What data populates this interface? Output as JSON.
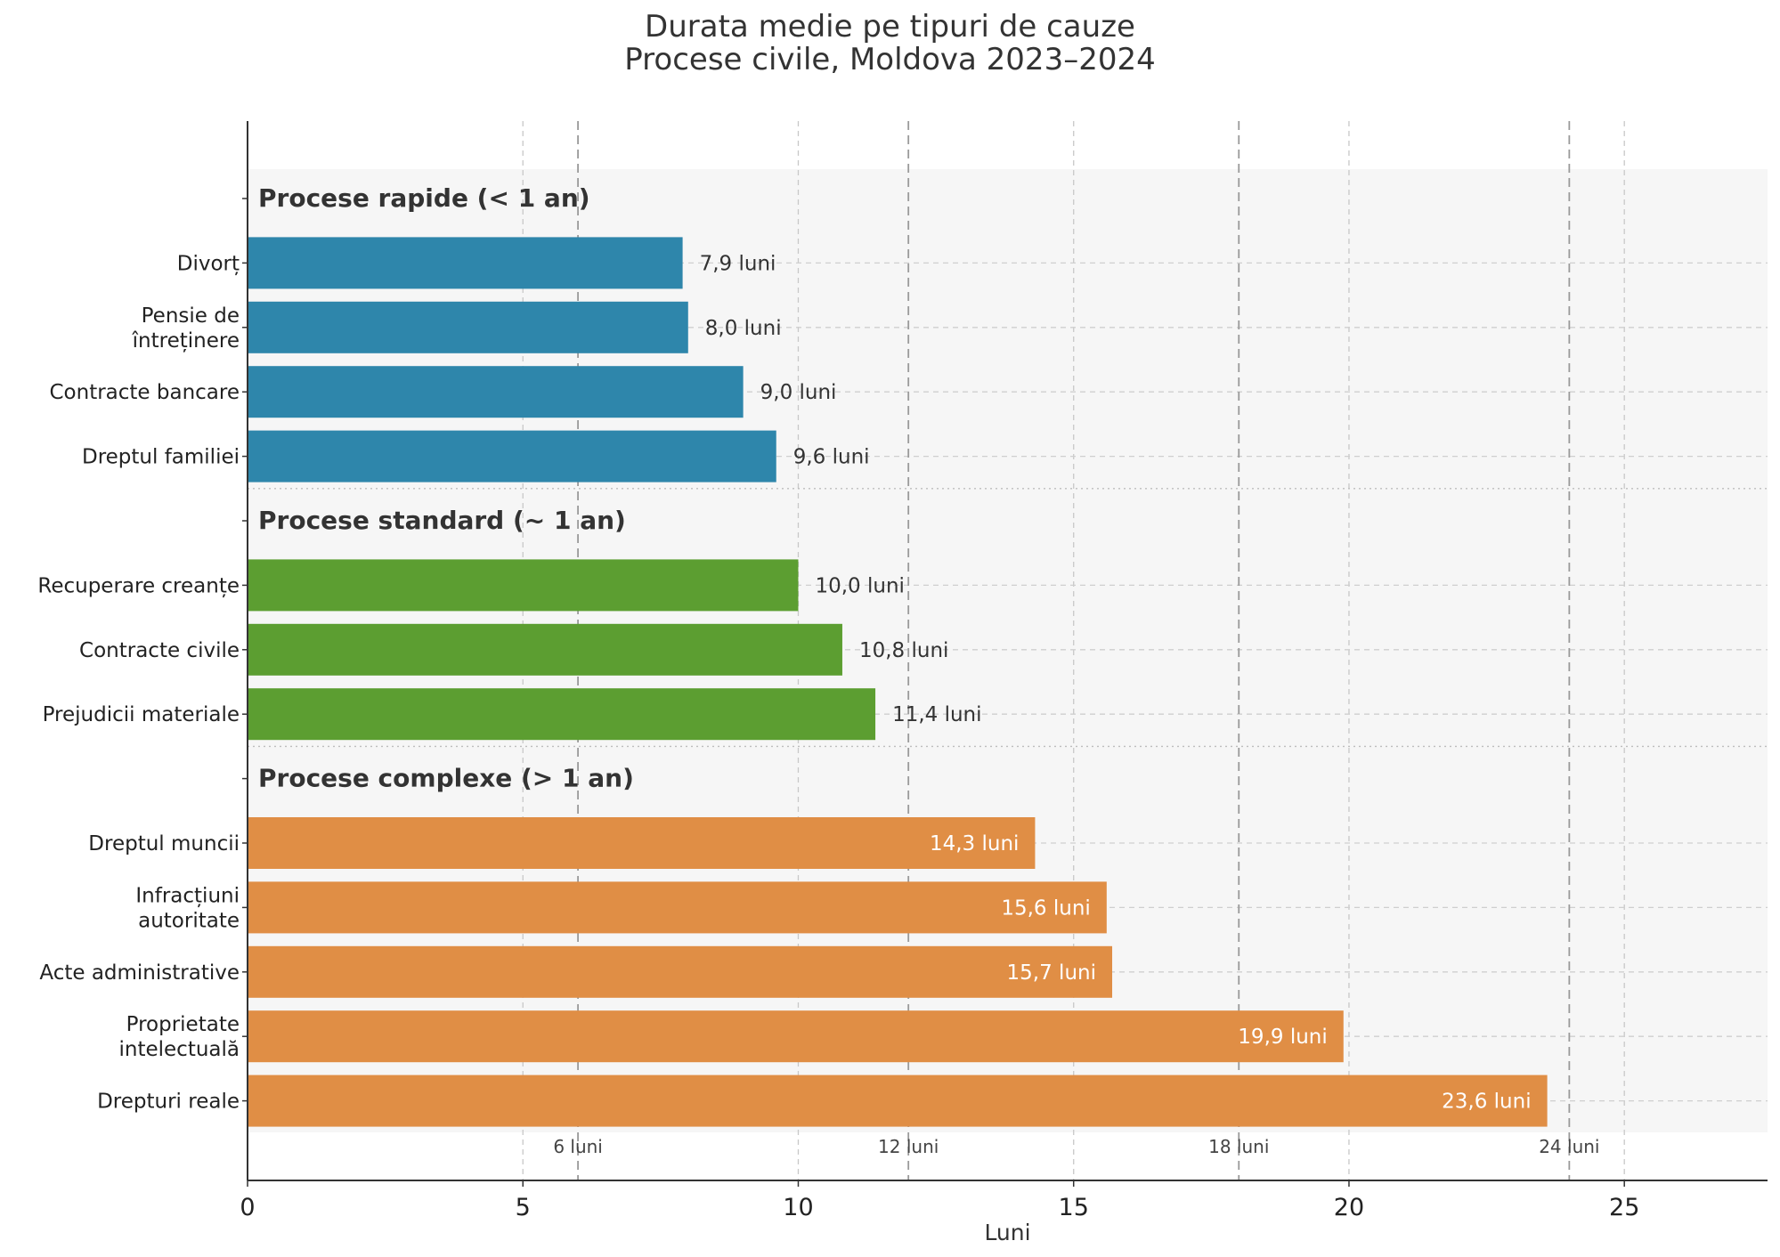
{
  "chart_data": {
    "type": "bar",
    "orientation": "horizontal",
    "title": "Durata medie pe tipuri de cauze",
    "subtitle": "Procese civile, Moldova 2023–2024",
    "xlabel": "Luni",
    "ylabel": "",
    "xlim": [
      0,
      27.6
    ],
    "xticks": [
      0,
      5,
      10,
      15,
      20,
      25
    ],
    "xtick_labels": [
      "0",
      "5",
      "10",
      "15",
      "20",
      "25"
    ],
    "grid": true,
    "reference_lines": [
      {
        "value": 6,
        "label": "6 luni"
      },
      {
        "value": 12,
        "label": "12 luni"
      },
      {
        "value": 18,
        "label": "18 luni"
      },
      {
        "value": 24,
        "label": "24 luni"
      }
    ],
    "groups": [
      {
        "name": "Procese rapide (< 1 an)",
        "color": "#2e86ab",
        "label_inside": false,
        "items": [
          {
            "category": [
              "Divorț"
            ],
            "value": 7.9,
            "label": "7,9 luni"
          },
          {
            "category": [
              "Pensie de",
              "întreținere"
            ],
            "value": 8.0,
            "label": "8,0 luni"
          },
          {
            "category": [
              "Contracte bancare"
            ],
            "value": 9.0,
            "label": "9,0 luni"
          },
          {
            "category": [
              "Dreptul familiei"
            ],
            "value": 9.6,
            "label": "9,6 luni"
          }
        ]
      },
      {
        "name": "Procese standard (~ 1 an)",
        "color": "#5c9e31",
        "label_inside": false,
        "items": [
          {
            "category": [
              "Recuperare creanțe"
            ],
            "value": 10.0,
            "label": "10,0 luni"
          },
          {
            "category": [
              "Contracte civile"
            ],
            "value": 10.8,
            "label": "10,8 luni"
          },
          {
            "category": [
              "Prejudicii materiale"
            ],
            "value": 11.4,
            "label": "11,4 luni"
          }
        ]
      },
      {
        "name": "Procese complexe (> 1 an)",
        "color": "#e08e45",
        "label_inside": true,
        "items": [
          {
            "category": [
              "Dreptul muncii"
            ],
            "value": 14.3,
            "label": "14,3 luni"
          },
          {
            "category": [
              "Infracțiuni",
              "autoritate"
            ],
            "value": 15.6,
            "label": "15,6 luni"
          },
          {
            "category": [
              "Acte administrative"
            ],
            "value": 15.7,
            "label": "15,7 luni"
          },
          {
            "category": [
              "Proprietate",
              "intelectuală"
            ],
            "value": 19.9,
            "label": "19,9 luni"
          },
          {
            "category": [
              "Drepturi reale"
            ],
            "value": 23.6,
            "label": "23,6 luni"
          }
        ]
      }
    ]
  }
}
